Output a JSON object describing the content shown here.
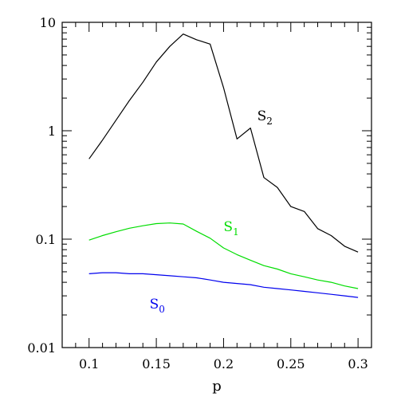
{
  "chart_data": {
    "type": "line",
    "title": "",
    "xlabel": "p",
    "ylabel": "",
    "xlim": [
      0.08,
      0.31
    ],
    "ylim": [
      0.01,
      10
    ],
    "yscale": "log",
    "grid": false,
    "x_ticks": [
      {
        "value": 0.1,
        "label": "0.1"
      },
      {
        "value": 0.15,
        "label": "0.15"
      },
      {
        "value": 0.2,
        "label": "0.2"
      },
      {
        "value": 0.25,
        "label": "0.25"
      },
      {
        "value": 0.3,
        "label": "0.3"
      }
    ],
    "y_ticks": [
      {
        "value": 0.01,
        "label": "0.01"
      },
      {
        "value": 0.1,
        "label": "0.1"
      },
      {
        "value": 1,
        "label": "1"
      },
      {
        "value": 10,
        "label": "10"
      }
    ],
    "series": [
      {
        "label_main": "S",
        "label_sub": "2",
        "label_at": {
          "x": 0.225,
          "y": 1.25
        },
        "color": "#000000",
        "x": [
          0.1,
          0.11,
          0.12,
          0.13,
          0.14,
          0.15,
          0.16,
          0.17,
          0.18,
          0.19,
          0.2,
          0.21,
          0.22,
          0.23,
          0.24,
          0.25,
          0.26,
          0.27,
          0.28,
          0.29,
          0.3
        ],
        "y": [
          0.55,
          0.82,
          1.25,
          1.9,
          2.8,
          4.3,
          6.0,
          7.8,
          6.9,
          6.3,
          2.5,
          0.84,
          1.06,
          0.37,
          0.3,
          0.2,
          0.18,
          0.125,
          0.108,
          0.086,
          0.076
        ]
      },
      {
        "label_main": "S",
        "label_sub": "1",
        "label_at": {
          "x": 0.2,
          "y": 0.118
        },
        "color": "#00dd00",
        "x": [
          0.1,
          0.11,
          0.12,
          0.13,
          0.14,
          0.15,
          0.16,
          0.17,
          0.18,
          0.19,
          0.2,
          0.21,
          0.22,
          0.23,
          0.24,
          0.25,
          0.26,
          0.27,
          0.28,
          0.29,
          0.3
        ],
        "y": [
          0.098,
          0.108,
          0.117,
          0.126,
          0.133,
          0.139,
          0.141,
          0.138,
          0.118,
          0.102,
          0.083,
          0.072,
          0.064,
          0.057,
          0.053,
          0.048,
          0.045,
          0.042,
          0.04,
          0.037,
          0.035
        ]
      },
      {
        "label_main": "S",
        "label_sub": "0",
        "label_at": {
          "x": 0.145,
          "y": 0.023
        },
        "color": "#0000ee",
        "x": [
          0.1,
          0.11,
          0.12,
          0.13,
          0.14,
          0.15,
          0.16,
          0.17,
          0.18,
          0.19,
          0.2,
          0.21,
          0.22,
          0.23,
          0.24,
          0.25,
          0.26,
          0.27,
          0.28,
          0.29,
          0.3
        ],
        "y": [
          0.048,
          0.049,
          0.049,
          0.048,
          0.048,
          0.047,
          0.046,
          0.045,
          0.044,
          0.042,
          0.04,
          0.039,
          0.038,
          0.036,
          0.035,
          0.034,
          0.033,
          0.032,
          0.031,
          0.03,
          0.029
        ]
      }
    ]
  }
}
